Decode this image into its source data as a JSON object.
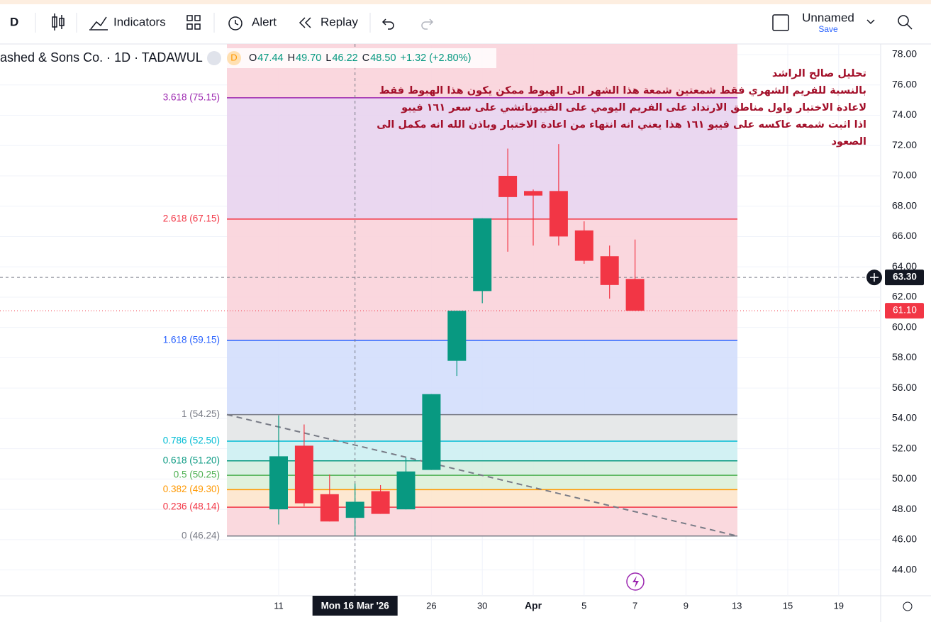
{
  "toolbar": {
    "interval": "D",
    "indicators": "Indicators",
    "alert": "Alert",
    "replay": "Replay",
    "layout_name": "Unnamed",
    "save": "Save"
  },
  "chart_data": {
    "type": "candlestick",
    "title": "ashed & Sons Co. · 1D · TADAWUL",
    "badge": "D",
    "ohlc_header": [
      {
        "label": "O",
        "value": "47.44"
      },
      {
        "label": "H",
        "value": "49.70"
      },
      {
        "label": "L",
        "value": "46.22"
      },
      {
        "label": "C",
        "value": "48.50"
      }
    ],
    "change": "+1.32 (+2.80%)",
    "annotation": [
      "تحليل صالح الراشد",
      "بالنسبة للفريم الشهري فقط شمعتين شمعة هذا الشهر الى الهبوط ممكن يكون هذا الهبوط فقط",
      "لاعادة الاختبار  واول مناطق الارتداد على الفريم اليومي على الفيبوناتشي على سعر ١٦١ فيبو",
      "اذا اثبت شمعه عاكسه على فيبو ١٦١ هذا يعني انه انتهاء من اعادة الاختبار وباذن الله انه مكمل الى",
      "الصعود"
    ],
    "categories": [
      "11",
      null,
      null,
      "Mon 16 Mar '26",
      null,
      null,
      "26",
      null,
      "30",
      null,
      "Apr",
      null,
      "5",
      null,
      "7",
      null,
      "9",
      null,
      "13",
      null,
      "15",
      null,
      "19"
    ],
    "open": [
      48.0,
      52.2,
      49.0,
      47.44,
      49.2,
      48.0,
      50.6,
      57.8,
      62.4,
      70.0,
      69.0,
      69.0,
      66.4,
      64.7,
      63.2,
      null,
      null,
      null,
      null,
      null,
      null,
      null,
      null
    ],
    "high": [
      54.2,
      53.6,
      50.3,
      49.7,
      49.6,
      51.4,
      55.6,
      61.1,
      67.2,
      71.8,
      69.1,
      72.1,
      67.0,
      65.4,
      65.8,
      null,
      null,
      null,
      null,
      null,
      null,
      null,
      null
    ],
    "low": [
      47.0,
      48.2,
      47.2,
      46.22,
      47.7,
      48.0,
      50.6,
      56.8,
      61.6,
      65.0,
      65.4,
      65.4,
      64.2,
      61.9,
      61.1,
      null,
      null,
      null,
      null,
      null,
      null,
      null,
      null
    ],
    "close": [
      51.5,
      48.4,
      47.2,
      48.5,
      47.7,
      50.5,
      55.6,
      61.1,
      67.2,
      68.6,
      68.7,
      66.0,
      64.4,
      62.8,
      61.1,
      null,
      null,
      null,
      null,
      null,
      null,
      null,
      null
    ],
    "up_color": "#089981",
    "down_color": "#f23645",
    "ylim": [
      42.3,
      78.7
    ],
    "yticks": [
      {
        "value": 44,
        "label": "44.00"
      },
      {
        "value": 46,
        "label": "46.00"
      },
      {
        "value": 48,
        "label": "48.00"
      },
      {
        "value": 50,
        "label": "50.00"
      },
      {
        "value": 52,
        "label": "52.00"
      },
      {
        "value": 54,
        "label": "54.00"
      },
      {
        "value": 56,
        "label": "56.00"
      },
      {
        "value": 58,
        "label": "58.00"
      },
      {
        "value": 60,
        "label": "60.00"
      },
      {
        "value": 62,
        "label": "62.00"
      },
      {
        "value": 64,
        "label": "64.00"
      },
      {
        "value": 66,
        "label": "66.00"
      },
      {
        "value": 68,
        "label": "68.00"
      },
      {
        "value": 70,
        "label": "70.00"
      },
      {
        "value": 72,
        "label": "72.00"
      },
      {
        "value": 74,
        "label": "74.00"
      },
      {
        "value": 76,
        "label": "76.00"
      },
      {
        "value": 78,
        "label": "78.00"
      }
    ],
    "grid": true,
    "fib_levels": [
      {
        "label": "0 (46.24)",
        "value": 46.24,
        "color": "#787b86",
        "zone": "#f9d5da"
      },
      {
        "label": "0.236 (48.14)",
        "value": 48.14,
        "color": "#f23645",
        "zone": "#fde6cc"
      },
      {
        "label": "0.382 (49.30)",
        "value": 49.3,
        "color": "#ff9800",
        "zone": "#dcefd8"
      },
      {
        "label": "0.5 (50.25)",
        "value": 50.25,
        "color": "#4caf50",
        "zone": "#d5ede0"
      },
      {
        "label": "0.618 (51.20)",
        "value": 51.2,
        "color": "#089981",
        "zone": "#cdf0f2"
      },
      {
        "label": "0.786 (52.50)",
        "value": 52.5,
        "color": "#00bcd4",
        "zone": "#e3e5e7"
      },
      {
        "label": "1 (54.25)",
        "value": 54.25,
        "color": "#787b86",
        "zone": "#d3defc"
      },
      {
        "label": "1.618 (59.15)",
        "value": 59.15,
        "color": "#2962ff",
        "zone": "#f9d3da"
      },
      {
        "label": "2.618 (67.15)",
        "value": 67.15,
        "color": "#f23645",
        "zone": "#e8d3ee"
      },
      {
        "label": "3.618 (75.15)",
        "value": 75.15,
        "color": "#9c27b0",
        "zone": "#f9d3da"
      }
    ],
    "crosshair_index": 3,
    "crosshair_price": {
      "value": 63.3,
      "label": "63.30"
    },
    "last_price": {
      "value": 61.1,
      "label": "61.10"
    }
  }
}
